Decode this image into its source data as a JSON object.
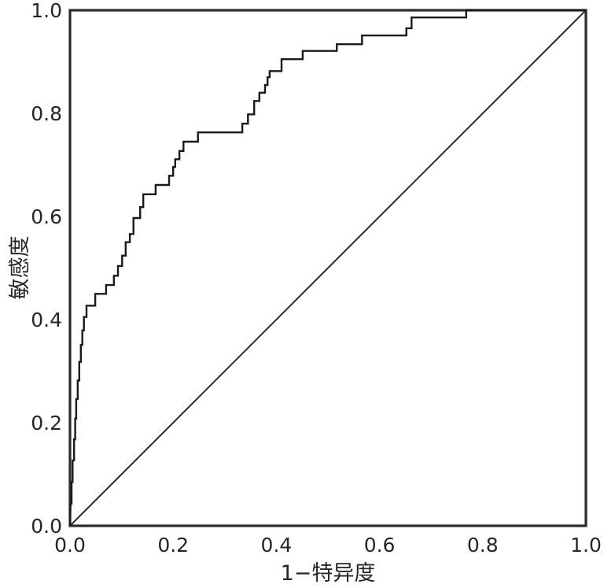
{
  "figure": {
    "background": "#ffffff",
    "axis_color": "#2b2b2b",
    "curve_color": "#1a1a1a",
    "diagonal_color": "#2b2b2b",
    "text_color": "#262626"
  },
  "chart_data": {
    "type": "line",
    "subtype": "roc-step-curve",
    "title": "",
    "xlabel": "1−特异度",
    "ylabel": "敏感度",
    "xlim": [
      0,
      1
    ],
    "ylim": [
      0,
      1
    ],
    "x_ticks": [
      "0.0",
      "0.2",
      "0.4",
      "0.6",
      "0.8",
      "1.0"
    ],
    "y_ticks": [
      "0.0",
      "0.2",
      "0.4",
      "0.6",
      "0.8",
      "1.0"
    ],
    "grid": false,
    "legend": null,
    "series": [
      {
        "name": "roc-curve",
        "draw": "step",
        "points": [
          [
            0.0,
            0.0
          ],
          [
            0.001,
            0.043
          ],
          [
            0.003,
            0.043
          ],
          [
            0.003,
            0.085
          ],
          [
            0.005,
            0.085
          ],
          [
            0.005,
            0.127
          ],
          [
            0.008,
            0.127
          ],
          [
            0.008,
            0.168
          ],
          [
            0.01,
            0.168
          ],
          [
            0.01,
            0.208
          ],
          [
            0.012,
            0.208
          ],
          [
            0.012,
            0.246
          ],
          [
            0.015,
            0.246
          ],
          [
            0.015,
            0.282
          ],
          [
            0.018,
            0.282
          ],
          [
            0.018,
            0.318
          ],
          [
            0.021,
            0.318
          ],
          [
            0.021,
            0.351
          ],
          [
            0.024,
            0.351
          ],
          [
            0.024,
            0.379
          ],
          [
            0.027,
            0.379
          ],
          [
            0.027,
            0.405
          ],
          [
            0.032,
            0.405
          ],
          [
            0.032,
            0.427
          ],
          [
            0.049,
            0.427
          ],
          [
            0.049,
            0.45
          ],
          [
            0.07,
            0.45
          ],
          [
            0.07,
            0.467
          ],
          [
            0.085,
            0.467
          ],
          [
            0.085,
            0.485
          ],
          [
            0.093,
            0.485
          ],
          [
            0.093,
            0.504
          ],
          [
            0.101,
            0.504
          ],
          [
            0.101,
            0.524
          ],
          [
            0.108,
            0.524
          ],
          [
            0.108,
            0.55
          ],
          [
            0.116,
            0.55
          ],
          [
            0.116,
            0.566
          ],
          [
            0.123,
            0.566
          ],
          [
            0.123,
            0.597
          ],
          [
            0.136,
            0.597
          ],
          [
            0.136,
            0.618
          ],
          [
            0.142,
            0.618
          ],
          [
            0.142,
            0.643
          ],
          [
            0.166,
            0.643
          ],
          [
            0.166,
            0.661
          ],
          [
            0.192,
            0.661
          ],
          [
            0.192,
            0.679
          ],
          [
            0.2,
            0.679
          ],
          [
            0.2,
            0.696
          ],
          [
            0.204,
            0.696
          ],
          [
            0.204,
            0.711
          ],
          [
            0.212,
            0.711
          ],
          [
            0.212,
            0.727
          ],
          [
            0.22,
            0.727
          ],
          [
            0.22,
            0.745
          ],
          [
            0.248,
            0.745
          ],
          [
            0.248,
            0.763
          ],
          [
            0.334,
            0.763
          ],
          [
            0.334,
            0.78
          ],
          [
            0.345,
            0.78
          ],
          [
            0.345,
            0.798
          ],
          [
            0.357,
            0.798
          ],
          [
            0.357,
            0.824
          ],
          [
            0.367,
            0.824
          ],
          [
            0.367,
            0.84
          ],
          [
            0.378,
            0.84
          ],
          [
            0.378,
            0.855
          ],
          [
            0.383,
            0.855
          ],
          [
            0.383,
            0.87
          ],
          [
            0.387,
            0.87
          ],
          [
            0.387,
            0.882
          ],
          [
            0.41,
            0.882
          ],
          [
            0.41,
            0.905
          ],
          [
            0.451,
            0.905
          ],
          [
            0.451,
            0.921
          ],
          [
            0.517,
            0.921
          ],
          [
            0.517,
            0.934
          ],
          [
            0.566,
            0.934
          ],
          [
            0.566,
            0.951
          ],
          [
            0.652,
            0.951
          ],
          [
            0.652,
            0.965
          ],
          [
            0.662,
            0.965
          ],
          [
            0.662,
            0.986
          ],
          [
            0.768,
            0.986
          ],
          [
            0.768,
            1.0
          ],
          [
            1.0,
            1.0
          ]
        ]
      },
      {
        "name": "reference-diagonal",
        "draw": "line",
        "points": [
          [
            0,
            0
          ],
          [
            1,
            1
          ]
        ]
      }
    ]
  }
}
